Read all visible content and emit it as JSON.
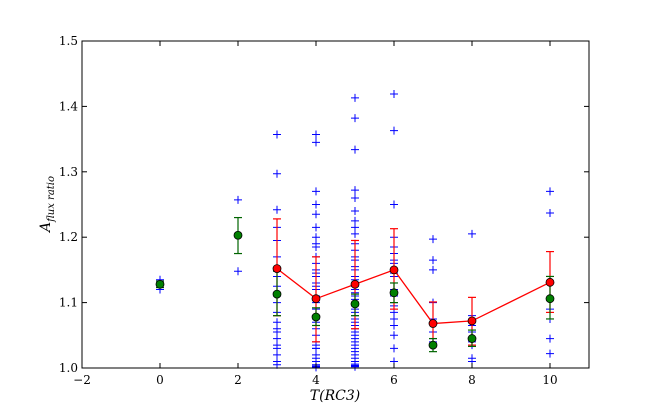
{
  "chart_data": {
    "type": "scatter",
    "title": "",
    "xlabel": "T(RC3)",
    "ylabel_main": "A",
    "ylabel_sub": "flux ratio",
    "xlim": [
      -2,
      11
    ],
    "ylim": [
      1.0,
      1.5
    ],
    "xticks": [
      -2,
      0,
      2,
      4,
      6,
      8,
      10
    ],
    "yticks": [
      1.0,
      1.1,
      1.2,
      1.3,
      1.4,
      1.5
    ],
    "grid": false,
    "colors": {
      "points": "#0000ff",
      "line": "#ff0000",
      "green_fill": "#008000",
      "green_err": "#006400",
      "red_fill": "#ff0000"
    },
    "scatter_points": {
      "x": [
        0,
        0,
        2,
        2,
        3,
        3,
        3,
        3,
        3,
        3,
        3,
        3,
        3,
        3,
        3,
        3,
        3,
        3,
        3,
        3,
        3,
        3,
        3,
        3,
        4,
        4,
        4,
        4,
        4,
        4,
        4,
        4,
        4,
        4,
        4,
        4,
        4,
        4,
        4,
        4,
        4,
        4,
        4,
        4,
        4,
        4,
        4,
        4,
        4,
        4,
        4,
        4,
        4,
        4,
        4,
        4,
        4,
        4,
        4,
        4,
        5,
        5,
        5,
        5,
        5,
        5,
        5,
        5,
        5,
        5,
        5,
        5,
        5,
        5,
        5,
        5,
        5,
        5,
        5,
        5,
        5,
        5,
        5,
        5,
        5,
        5,
        5,
        5,
        5,
        5,
        5,
        5,
        5,
        5,
        5,
        5,
        5,
        5,
        5,
        5,
        5,
        5,
        5,
        5,
        5,
        6,
        6,
        6,
        6,
        6,
        6,
        6,
        6,
        6,
        6,
        6,
        6,
        6,
        6,
        6,
        6,
        6,
        6,
        6,
        6,
        6,
        6,
        7,
        7,
        7,
        7,
        7,
        7,
        7,
        7,
        7,
        8,
        8,
        8,
        8,
        8,
        8,
        8,
        8,
        10,
        10,
        10,
        10,
        10,
        10,
        10,
        10
      ],
      "y": [
        1.12,
        1.135,
        1.257,
        1.148,
        1.357,
        1.297,
        1.242,
        1.215,
        1.195,
        1.17,
        1.14,
        1.125,
        1.11,
        1.1,
        1.085,
        1.07,
        1.06,
        1.055,
        1.045,
        1.035,
        1.03,
        1.02,
        1.01,
        1.005,
        1.357,
        1.345,
        1.27,
        1.25,
        1.235,
        1.215,
        1.2,
        1.19,
        1.185,
        1.17,
        1.16,
        1.15,
        1.145,
        1.14,
        1.13,
        1.125,
        1.12,
        1.11,
        1.1,
        1.09,
        1.08,
        1.075,
        1.07,
        1.06,
        1.05,
        1.04,
        1.035,
        1.03,
        1.03,
        1.02,
        1.015,
        1.01,
        1.005,
        1.003,
        1.002,
        1.001,
        1.413,
        1.382,
        1.334,
        1.272,
        1.26,
        1.24,
        1.225,
        1.215,
        1.205,
        1.19,
        1.18,
        1.17,
        1.165,
        1.155,
        1.15,
        1.14,
        1.135,
        1.125,
        1.12,
        1.115,
        1.11,
        1.105,
        1.1,
        1.095,
        1.09,
        1.085,
        1.08,
        1.075,
        1.07,
        1.065,
        1.06,
        1.055,
        1.05,
        1.045,
        1.04,
        1.035,
        1.03,
        1.025,
        1.02,
        1.015,
        1.01,
        1.006,
        1.004,
        1.003,
        1.002,
        1.419,
        1.363,
        1.25,
        1.2,
        1.185,
        1.175,
        1.165,
        1.16,
        1.15,
        1.145,
        1.14,
        1.13,
        1.12,
        1.11,
        1.1,
        1.095,
        1.085,
        1.075,
        1.065,
        1.05,
        1.03,
        1.01,
        1.197,
        1.165,
        1.15,
        1.1,
        1.075,
        1.055,
        1.045,
        1.04,
        1.035,
        1.205,
        1.08,
        1.065,
        1.055,
        1.04,
        1.035,
        1.015,
        1.01,
        1.27,
        1.237,
        1.14,
        1.105,
        1.09,
        1.075,
        1.045,
        1.022
      ]
    },
    "series": [
      {
        "x": [
          3,
          4,
          5,
          6,
          7,
          8,
          10
        ],
        "y": [
          1.152,
          1.106,
          1.128,
          1.15,
          1.068,
          1.072,
          1.131
        ],
        "yerr_low": [
          1.08,
          1.04,
          1.06,
          1.09,
          1.035,
          1.035,
          1.085
        ],
        "yerr_high": [
          1.228,
          1.17,
          1.195,
          1.213,
          1.101,
          1.108,
          1.178
        ]
      },
      {
        "x": [
          0,
          2,
          3,
          4,
          5,
          6,
          7,
          8,
          10
        ],
        "y": [
          1.128,
          1.203,
          1.113,
          1.078,
          1.098,
          1.115,
          1.035,
          1.045,
          1.106
        ],
        "yerr_low": [
          1.123,
          1.175,
          1.08,
          1.065,
          1.08,
          1.1,
          1.025,
          1.033,
          1.075
        ],
        "yerr_high": [
          1.133,
          1.23,
          1.148,
          1.092,
          1.113,
          1.13,
          1.045,
          1.058,
          1.14
        ]
      }
    ]
  }
}
